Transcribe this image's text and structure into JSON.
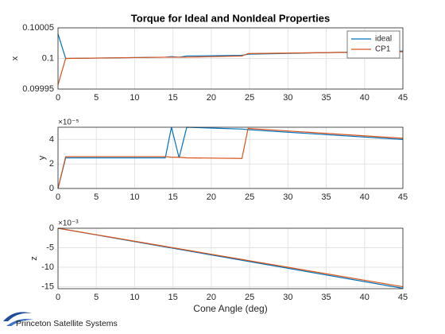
{
  "footer": {
    "text": "Princeton Satellite Systems"
  },
  "chart_data": [
    {
      "type": "line",
      "title": "Torque for Ideal and NonIdeal Properties",
      "ylabel": "x",
      "x": [
        0,
        1,
        14,
        14.8,
        15.8,
        16.8,
        24,
        24.8,
        45
      ],
      "series": [
        {
          "name": "ideal",
          "color": "#0072bd",
          "values": [
            0.10004,
            0.1,
            0.100002,
            0.100003,
            0.100002,
            0.100004,
            0.100005,
            0.100007,
            0.100012
          ]
        },
        {
          "name": "CP1",
          "color": "#d95319",
          "values": [
            0.099957,
            0.1,
            0.100002,
            0.100002,
            0.100002,
            0.100002,
            0.100004,
            0.100008,
            0.100011
          ]
        }
      ],
      "xlim": [
        0,
        45
      ],
      "xticks": [
        0,
        5,
        10,
        15,
        20,
        25,
        30,
        35,
        40,
        45
      ],
      "ylim": [
        0.09995,
        0.10005
      ],
      "yticks": [
        0.09995,
        0.1,
        0.10005
      ],
      "grid": true,
      "legend": "northeast"
    },
    {
      "type": "line",
      "ylabel": "y",
      "y_exponent": "×10⁻⁵",
      "x": [
        0,
        1,
        14,
        14.8,
        15.8,
        16.8,
        24,
        24.8,
        45
      ],
      "series": [
        {
          "color": "#0072bd",
          "values": [
            0,
            2.5,
            2.5,
            5,
            2.5,
            5,
            4.85,
            4.8,
            4.0
          ]
        },
        {
          "color": "#d95319",
          "values": [
            0,
            2.6,
            2.6,
            2.55,
            2.55,
            2.5,
            2.45,
            4.9,
            4.1
          ]
        }
      ],
      "xlim": [
        0,
        45
      ],
      "xticks": [
        0,
        5,
        10,
        15,
        20,
        25,
        30,
        35,
        40,
        45
      ],
      "ylim": [
        0,
        5
      ],
      "yticks": [
        0,
        2,
        4
      ],
      "grid": true
    },
    {
      "type": "line",
      "ylabel": "z",
      "xlabel": "Cone Angle (deg)",
      "y_exponent": "×10⁻³",
      "x": [
        0,
        1,
        14,
        14.8,
        15.8,
        16.8,
        24,
        24.8,
        45
      ],
      "series": [
        {
          "color": "#0072bd",
          "values": [
            0,
            -0.34,
            -4.79,
            -5.06,
            -5.41,
            -5.75,
            -8.21,
            -8.49,
            -15.4
          ]
        },
        {
          "color": "#d95319",
          "values": [
            0,
            -0.33,
            -4.67,
            -4.93,
            -5.27,
            -5.6,
            -8,
            -8.27,
            -15
          ]
        }
      ],
      "xlim": [
        0,
        45
      ],
      "xticks": [
        0,
        5,
        10,
        15,
        20,
        25,
        30,
        35,
        40,
        45
      ],
      "ylim": [
        -15.5,
        0
      ],
      "yticks": [
        -15,
        -10,
        -5,
        0
      ],
      "grid": true
    }
  ]
}
